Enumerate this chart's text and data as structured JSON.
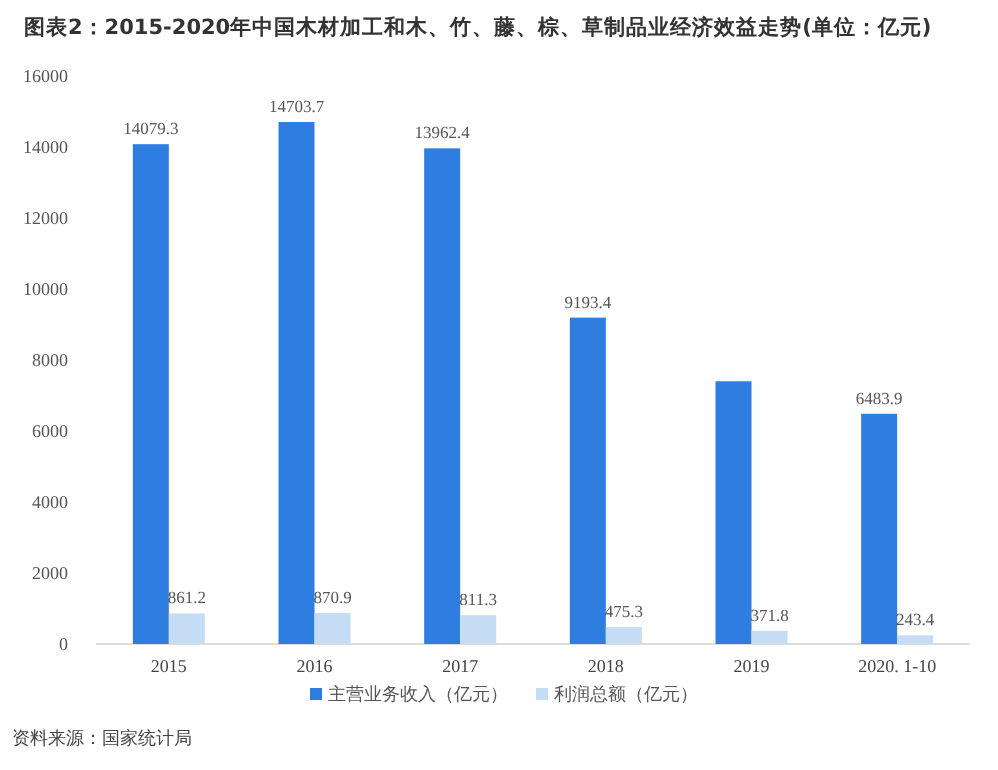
{
  "chart_data": {
    "type": "bar",
    "title": "图表2：2015-2020年中国木材加工和木、竹、藤、棕、草制品业经济效益走势(单位：亿元)",
    "categories": [
      "2015",
      "2016",
      "2017",
      "2018",
      "2019",
      "2020. 1-10"
    ],
    "series": [
      {
        "name": "主营业务收入（亿元）",
        "color": "#2e7de0",
        "values": [
          14079.3,
          14703.7,
          13962.4,
          9193.4,
          7400,
          6483.9
        ],
        "value_labels": [
          "14079.3",
          "14703.7",
          "13962.4",
          "9193.4",
          null,
          "6483.9"
        ]
      },
      {
        "name": "利润总额（亿元）",
        "color": "#c5dcf5",
        "values": [
          861.2,
          870.9,
          811.3,
          475.3,
          371.8,
          243.4
        ],
        "value_labels": [
          "861.2",
          "870.9",
          "811.3",
          "475.3",
          "371.8",
          "243.4"
        ]
      }
    ],
    "ylim": [
      0,
      16000
    ],
    "yticks": [
      0,
      2000,
      4000,
      6000,
      8000,
      10000,
      12000,
      14000,
      16000
    ],
    "legend": "bottom",
    "annotations": [
      "资料来源：国家统计局"
    ]
  }
}
